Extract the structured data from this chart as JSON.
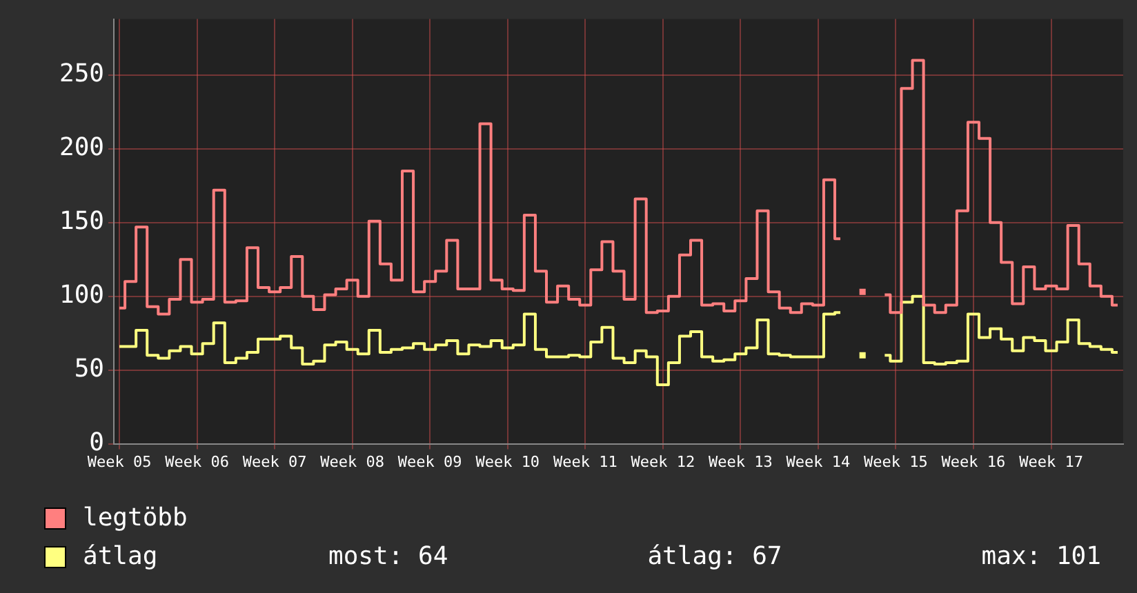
{
  "chart_data": {
    "type": "step",
    "categories": [
      "Week 05",
      null,
      null,
      null,
      null,
      null,
      null,
      "Week 06",
      null,
      null,
      null,
      null,
      null,
      null,
      "Week 07",
      null,
      null,
      null,
      null,
      null,
      null,
      "Week 08",
      null,
      null,
      null,
      null,
      null,
      null,
      "Week 09",
      null,
      null,
      null,
      null,
      null,
      null,
      "Week 10",
      null,
      null,
      null,
      null,
      null,
      null,
      "Week 11",
      null,
      null,
      null,
      null,
      null,
      null,
      "Week 12",
      null,
      null,
      null,
      null,
      null,
      null,
      "Week 13",
      null,
      null,
      null,
      null,
      null,
      null,
      "Week 14",
      null,
      null,
      null,
      null,
      null,
      null,
      "Week 15",
      null,
      null,
      null,
      null,
      null,
      null,
      "Week 16",
      null,
      null,
      null,
      null,
      null,
      null,
      "Week 17",
      null,
      null,
      null,
      null,
      null,
      null
    ],
    "series": [
      {
        "name": "legtöbb",
        "color": "#ff7f7f",
        "values": [
          92,
          110,
          147,
          93,
          88,
          98,
          125,
          96,
          98,
          172,
          96,
          97,
          133,
          106,
          103,
          106,
          127,
          100,
          91,
          101,
          105,
          111,
          100,
          151,
          122,
          111,
          185,
          103,
          110,
          117,
          138,
          105,
          105,
          217,
          111,
          105,
          104,
          155,
          117,
          96,
          107,
          98,
          94,
          118,
          137,
          117,
          98,
          166,
          89,
          90,
          100,
          128,
          138,
          94,
          95,
          90,
          97,
          112,
          158,
          103,
          92,
          89,
          95,
          94,
          179,
          139,
          null,
          103,
          null,
          101,
          89,
          241,
          260,
          94,
          89,
          94,
          158,
          218,
          207,
          150,
          123,
          95,
          120,
          105,
          107,
          105,
          148,
          122,
          107,
          100,
          94
        ]
      },
      {
        "name": "átlag",
        "color": "#ffff80",
        "values": [
          66,
          66,
          77,
          60,
          58,
          63,
          66,
          61,
          68,
          82,
          55,
          58,
          62,
          71,
          71,
          73,
          65,
          54,
          56,
          67,
          69,
          64,
          61,
          77,
          62,
          64,
          65,
          68,
          64,
          67,
          70,
          61,
          67,
          66,
          70,
          65,
          67,
          88,
          64,
          59,
          59,
          60,
          59,
          69,
          79,
          58,
          55,
          63,
          59,
          40,
          55,
          73,
          76,
          59,
          56,
          57,
          61,
          65,
          84,
          61,
          60,
          59,
          59,
          59,
          88,
          89,
          null,
          60,
          null,
          60,
          56,
          96,
          100,
          55,
          54,
          55,
          56,
          88,
          72,
          78,
          71,
          63,
          72,
          70,
          63,
          69,
          84,
          68,
          66,
          64,
          62
        ]
      }
    ],
    "ylim": [
      0,
      288
    ],
    "yticks": [
      0,
      50,
      100,
      150,
      200,
      250
    ],
    "grid": true,
    "legend": "bottom left",
    "annotations": [
      "most: 64",
      "átlag: 67",
      "max: 101"
    ]
  }
}
